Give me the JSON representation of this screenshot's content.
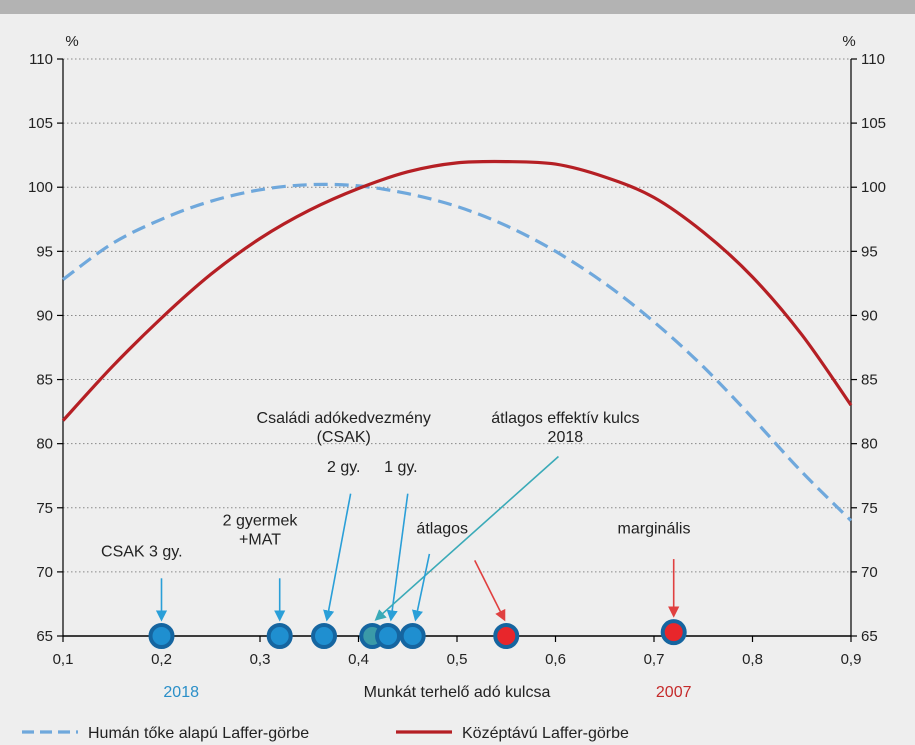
{
  "chart_data": {
    "type": "line",
    "xlabel": "Munkát terhelő adó kulcsa",
    "ylabel_left": "%",
    "ylabel_right": "%",
    "xlim": [
      0.1,
      0.9
    ],
    "ylim": [
      65,
      110
    ],
    "x_ticks": [
      0.1,
      0.2,
      0.3,
      0.4,
      0.5,
      0.6,
      0.7,
      0.8,
      0.9
    ],
    "x_tick_labels": [
      "0,1",
      "0,2",
      "0,3",
      "0,4",
      "0,5",
      "0,6",
      "0,7",
      "0,8",
      "0,9"
    ],
    "y_ticks": [
      65,
      70,
      75,
      80,
      85,
      90,
      95,
      100,
      105,
      110
    ],
    "grid": "horizontal dotted",
    "legend_position": "bottom",
    "colors": {
      "human": "#6fa8dc",
      "medium": "#b51f24",
      "point_fill": "#1f8fd0",
      "point_edge": "#1565a0",
      "red_point": "#e8262b",
      "arrow_blue": "#2a9fd8",
      "arrow_teal": "#3aaab8",
      "arrow_red": "#e04040"
    },
    "series": [
      {
        "name": "Humán tőke alapú Laffer-görbe",
        "style": "dashed",
        "x": [
          0.1,
          0.15,
          0.2,
          0.25,
          0.3,
          0.35,
          0.4,
          0.45,
          0.5,
          0.55,
          0.6,
          0.65,
          0.7,
          0.75,
          0.8,
          0.85,
          0.9
        ],
        "y": [
          92.8,
          95.6,
          97.5,
          98.9,
          99.8,
          100.2,
          100.1,
          99.5,
          98.5,
          97.0,
          95.0,
          92.5,
          89.5,
          86.0,
          82.0,
          77.8,
          74.0
        ]
      },
      {
        "name": "Középtávú Laffer-görbe",
        "style": "solid",
        "x": [
          0.1,
          0.15,
          0.2,
          0.25,
          0.3,
          0.35,
          0.4,
          0.45,
          0.5,
          0.55,
          0.6,
          0.65,
          0.7,
          0.75,
          0.8,
          0.85,
          0.9
        ],
        "y": [
          81.8,
          86.0,
          89.8,
          93.2,
          96.0,
          98.2,
          99.9,
          101.2,
          101.9,
          102.0,
          101.8,
          100.8,
          99.2,
          96.5,
          93.0,
          88.5,
          83.0
        ]
      }
    ],
    "points": [
      {
        "x": 0.2,
        "y": 65,
        "color": "blue"
      },
      {
        "x": 0.32,
        "y": 65,
        "color": "blue"
      },
      {
        "x": 0.365,
        "y": 65,
        "color": "blue"
      },
      {
        "x": 0.414,
        "y": 65,
        "color": "teal"
      },
      {
        "x": 0.43,
        "y": 65,
        "color": "blue"
      },
      {
        "x": 0.455,
        "y": 65,
        "color": "blue"
      },
      {
        "x": 0.55,
        "y": 65,
        "color": "red"
      },
      {
        "x": 0.72,
        "y": 65.3,
        "color": "red"
      }
    ],
    "annotations": [
      {
        "lines": [
          "CSAK 3 gy."
        ],
        "tx": 0.18,
        "ty": 71.2,
        "arrow": [
          0.2,
          69.5,
          0.2,
          66.3
        ],
        "color": "blue"
      },
      {
        "lines": [
          "2 gyermek",
          "+MAT"
        ],
        "tx": 0.3,
        "ty": 73.6,
        "arrow": [
          0.32,
          69.5,
          0.32,
          66.3
        ],
        "color": "blue"
      },
      {
        "lines": [
          "Családi adókedvezmény",
          "(CSAK)"
        ],
        "tx": 0.385,
        "ty": 81.6,
        "arrow": null,
        "color": "none"
      },
      {
        "lines": [
          "2 gy."
        ],
        "tx": 0.385,
        "ty": 77.8,
        "arrow": [
          0.392,
          76.1,
          0.368,
          66.3
        ],
        "color": "blue"
      },
      {
        "lines": [
          "1 gy."
        ],
        "tx": 0.443,
        "ty": 77.8,
        "arrow": [
          0.45,
          76.1,
          0.433,
          66.3
        ],
        "color": "blue"
      },
      {
        "lines": [
          "átlagos effektív kulcs",
          "2018"
        ],
        "tx": 0.61,
        "ty": 81.6,
        "arrow": [
          0.603,
          79.0,
          0.418,
          66.3
        ],
        "color": "teal"
      },
      {
        "lines": [
          "átlagos"
        ],
        "tx": 0.485,
        "ty": 73.0,
        "arrow": [
          0.472,
          71.4,
          0.458,
          66.3
        ],
        "color": "blue"
      },
      {
        "lines": [
          "marginális"
        ],
        "tx": 0.7,
        "ty": 73.0,
        "arrow": [
          0.72,
          71.0,
          0.72,
          66.6
        ],
        "color": "red"
      }
    ],
    "red_arrow": [
      0.518,
      70.9,
      0.548,
      66.3
    ],
    "footer_labels": [
      {
        "text": "2018",
        "x": 0.22,
        "color": "#2a8fc8"
      },
      {
        "text": "2007",
        "x": 0.72,
        "color": "#c52a2a"
      }
    ],
    "legend": [
      {
        "label": "Humán tőke alapú Laffer-görbe"
      },
      {
        "label": "Középtávú Laffer-görbe"
      }
    ]
  }
}
